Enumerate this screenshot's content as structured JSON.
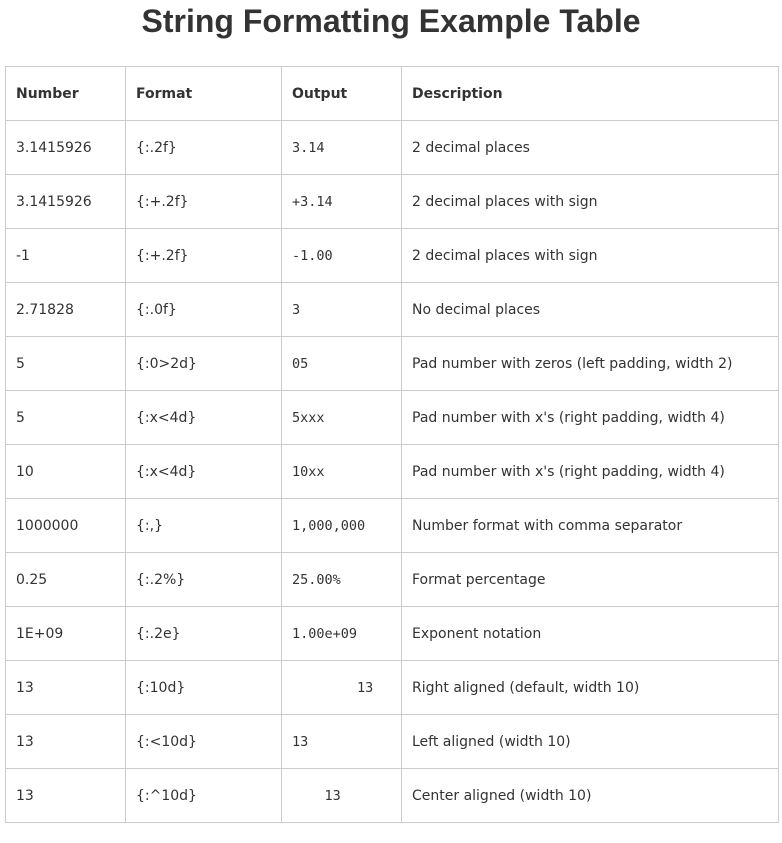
{
  "title": "String Formatting Example Table",
  "columns": [
    "Number",
    "Format",
    "Output",
    "Description"
  ],
  "rows": [
    {
      "number": "3.1415926",
      "format": "{:.2f}",
      "output": "3.14",
      "description": "2 decimal places"
    },
    {
      "number": "3.1415926",
      "format": "{:+.2f}",
      "output": "+3.14",
      "description": "2 decimal places with sign"
    },
    {
      "number": "-1",
      "format": "{:+.2f}",
      "output": "-1.00",
      "description": "2 decimal places with sign"
    },
    {
      "number": "2.71828",
      "format": "{:.0f}",
      "output": "3",
      "description": "No decimal places"
    },
    {
      "number": "5",
      "format": "{:0>2d}",
      "output": "05",
      "description": "Pad number with zeros (left padding, width 2)"
    },
    {
      "number": "5",
      "format": "{:x<4d}",
      "output": "5xxx",
      "description": "Pad number with x's (right padding, width 4)"
    },
    {
      "number": "10",
      "format": "{:x<4d}",
      "output": "10xx",
      "description": "Pad number with x's (right padding, width 4)"
    },
    {
      "number": "1000000",
      "format": "{:,}",
      "output": "1,000,000",
      "description": "Number format with comma separator"
    },
    {
      "number": "0.25",
      "format": "{:.2%}",
      "output": "25.00%",
      "description": "Format percentage"
    },
    {
      "number": "1E+09",
      "format": "{:.2e}",
      "output": "1.00e+09",
      "description": "Exponent notation"
    },
    {
      "number": "13",
      "format": "{:10d}",
      "output": "        13",
      "description": "Right aligned (default, width 10)"
    },
    {
      "number": "13",
      "format": "{:<10d}",
      "output": "13",
      "description": "Left aligned (width 10)"
    },
    {
      "number": "13",
      "format": "{:^10d}",
      "output": "    13",
      "description": "Center aligned (width 10)"
    }
  ]
}
